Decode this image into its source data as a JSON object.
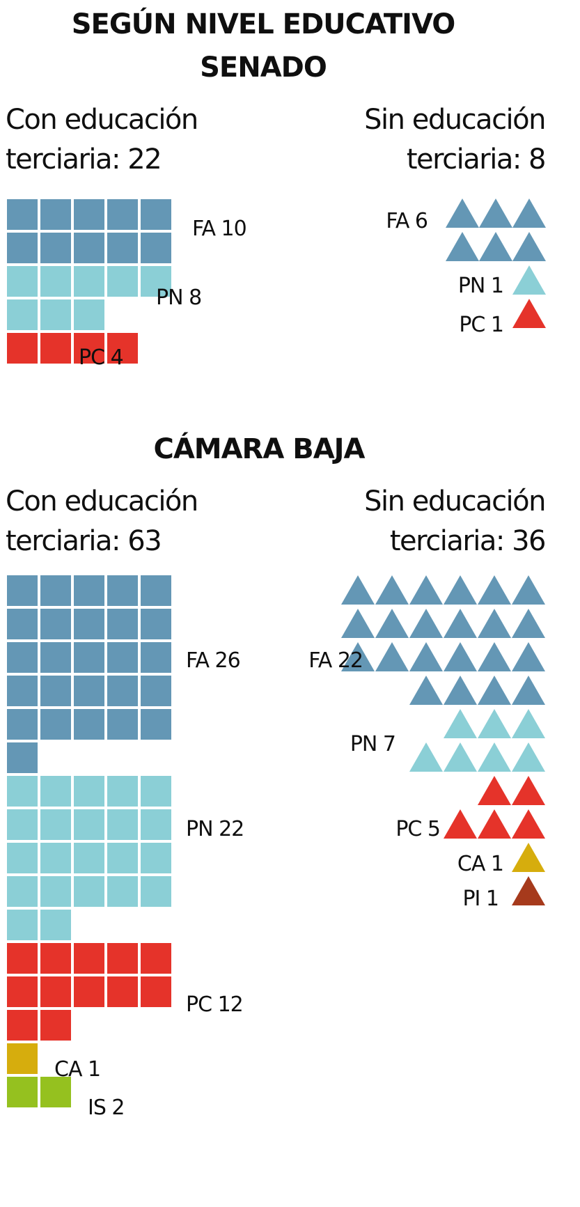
{
  "title": "SEGÚN NIVEL EDUCATIVO",
  "chart_data": [
    {
      "type": "waffle",
      "section": "SENADO",
      "groups": [
        {
          "caption_line1": "Con educación",
          "caption_line2": "terciaria: 22",
          "mark": "square",
          "parties": [
            {
              "name": "FA",
              "label": "FA 10",
              "value": 10,
              "color": "#6497b5"
            },
            {
              "name": "PN",
              "label": "PN 8",
              "value": 8,
              "color": "#8bcfd6"
            },
            {
              "name": "PC",
              "label": "PC 4",
              "value": 4,
              "color": "#e5332a"
            }
          ]
        },
        {
          "caption_line1": "Sin educación",
          "caption_line2": "terciaria: 8",
          "mark": "triangle",
          "parties": [
            {
              "name": "FA",
              "label": "FA 6",
              "value": 6,
              "color": "#6497b5"
            },
            {
              "name": "PN",
              "label": "PN 1",
              "value": 1,
              "color": "#8bcfd6"
            },
            {
              "name": "PC",
              "label": "PC 1",
              "value": 1,
              "color": "#e5332a"
            }
          ]
        }
      ]
    },
    {
      "type": "waffle",
      "section": "CÁMARA BAJA",
      "groups": [
        {
          "caption_line1": "Con educación",
          "caption_line2": "terciaria: 63",
          "mark": "square",
          "parties": [
            {
              "name": "FA",
              "label": "FA 26",
              "value": 26,
              "color": "#6497b5"
            },
            {
              "name": "PN",
              "label": "PN 22",
              "value": 22,
              "color": "#8bcfd6"
            },
            {
              "name": "PC",
              "label": "PC 12",
              "value": 12,
              "color": "#e5332a"
            },
            {
              "name": "CA",
              "label": "CA 1",
              "value": 1,
              "color": "#d6ad0d"
            },
            {
              "name": "IS",
              "label": "IS 2",
              "value": 2,
              "color": "#95c11f"
            }
          ]
        },
        {
          "caption_line1": "Sin educación",
          "caption_line2": "terciaria: 36",
          "mark": "triangle",
          "parties": [
            {
              "name": "FA",
              "label": "FA 22",
              "value": 22,
              "color": "#6497b5"
            },
            {
              "name": "PN",
              "label": "PN 7",
              "value": 7,
              "color": "#8bcfd6"
            },
            {
              "name": "PC",
              "label": "PC 5",
              "value": 5,
              "color": "#e5332a"
            },
            {
              "name": "CA",
              "label": "CA 1",
              "value": 1,
              "color": "#d6ad0d"
            },
            {
              "name": "PI",
              "label": "PI 1",
              "value": 1,
              "color": "#a63a1c"
            }
          ]
        }
      ]
    }
  ]
}
